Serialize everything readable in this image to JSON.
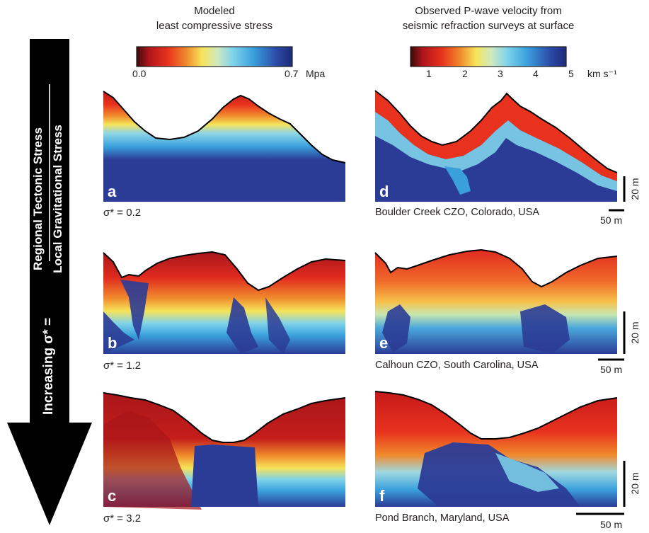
{
  "left_colorbar": {
    "title_line1": "Modeled",
    "title_line2": "least compressive stress",
    "min_label": "0.0",
    "max_label": "0.7",
    "unit": "Mpa"
  },
  "right_colorbar": {
    "title_line1": "Observed  P-wave velocity from",
    "title_line2": "seismic refraction surveys at surface",
    "ticks": [
      "1",
      "2",
      "3",
      "4",
      "5"
    ],
    "unit": "km s⁻¹"
  },
  "arrow": {
    "prefix": "Increasing  σ* =",
    "numerator": "Regional Tectonic Stress",
    "denominator": "Local Gravitational Stress"
  },
  "panels": [
    {
      "letter": "a",
      "caption": "σ* = 0.2"
    },
    {
      "letter": "b",
      "caption": "σ* = 1.2"
    },
    {
      "letter": "c",
      "caption": "σ* = 3.2"
    },
    {
      "letter": "d",
      "caption": "Boulder Creek CZO, Colorado, USA"
    },
    {
      "letter": "e",
      "caption": "Calhoun CZO, South Carolina, USA"
    },
    {
      "letter": "f",
      "caption": "Pond Branch, Maryland, USA"
    }
  ],
  "scale_bars": {
    "vertical": "20 m",
    "horizontal": "50 m"
  },
  "colors": {
    "deep_blue": "#2b3c96",
    "mid_blue": "#3aa0dc",
    "cyan": "#7fd3ea",
    "yellow": "#f6e45a",
    "orange": "#f08a2c",
    "red": "#e02a1e",
    "dark_red": "#a8161a"
  }
}
